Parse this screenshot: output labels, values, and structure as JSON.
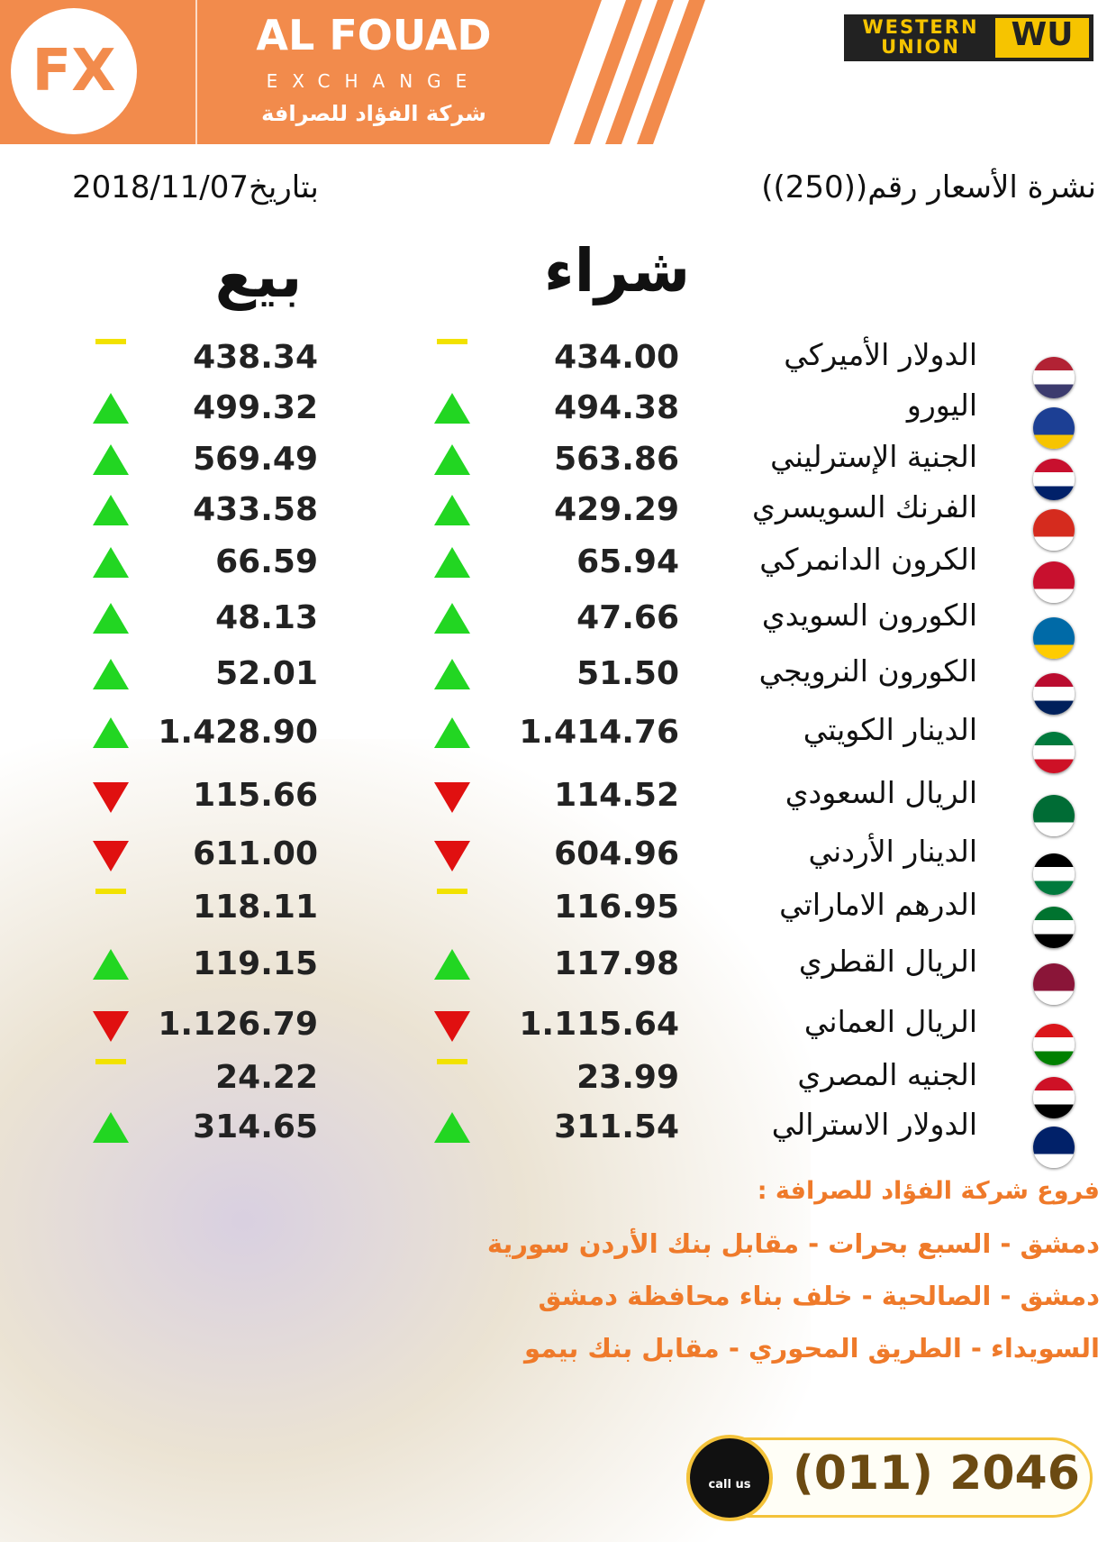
{
  "header": {
    "brand": "AL FOUAD",
    "subtitle": "EXCHANGE",
    "arabic_name": "شركة الفؤاد للصرافة",
    "partner_top": "WESTERN",
    "partner_bottom": "UNION",
    "partner_logo": "WU"
  },
  "bulletin": {
    "title": "نشرة الأسعار رقم((250))",
    "date": "بتاريخ2018/11/07"
  },
  "table": {
    "buy_header": "شراء",
    "sell_header": "بيع",
    "rows": [
      {
        "name": "الدولار الأميركي",
        "buy": "434.00",
        "buy_trend": "flat",
        "sell": "438.34",
        "sell_trend": "flat"
      },
      {
        "name": "اليورو",
        "buy": "494.38",
        "buy_trend": "up",
        "sell": "499.32",
        "sell_trend": "up"
      },
      {
        "name": "الجنية الإسترليني",
        "buy": "563.86",
        "buy_trend": "up",
        "sell": "569.49",
        "sell_trend": "up"
      },
      {
        "name": "الفرنك السويسري",
        "buy": "429.29",
        "buy_trend": "up",
        "sell": "433.58",
        "sell_trend": "up"
      },
      {
        "name": "الكرون الدانمركي",
        "buy": "65.94",
        "buy_trend": "up",
        "sell": "66.59",
        "sell_trend": "up"
      },
      {
        "name": "الكورون السويدي",
        "buy": "47.66",
        "buy_trend": "up",
        "sell": "48.13",
        "sell_trend": "up"
      },
      {
        "name": "الكورون النرويجي",
        "buy": "51.50",
        "buy_trend": "up",
        "sell": "52.01",
        "sell_trend": "up"
      },
      {
        "name": "الدينار الكويتي",
        "buy": "1.414.76",
        "buy_trend": "up",
        "sell": "1.428.90",
        "sell_trend": "up"
      },
      {
        "name": "الريال السعودي",
        "buy": "114.52",
        "buy_trend": "down",
        "sell": "115.66",
        "sell_trend": "down"
      },
      {
        "name": "الدينار الأردني",
        "buy": "604.96",
        "buy_trend": "down",
        "sell": "611.00",
        "sell_trend": "down"
      },
      {
        "name": "الدرهم الاماراتي",
        "buy": "116.95",
        "buy_trend": "flat",
        "sell": "118.11",
        "sell_trend": "flat"
      },
      {
        "name": "الريال القطري",
        "buy": "117.98",
        "buy_trend": "up",
        "sell": "119.15",
        "sell_trend": "up"
      },
      {
        "name": "الريال العماني",
        "buy": "1.115.64",
        "buy_trend": "down",
        "sell": "1.126.79",
        "sell_trend": "down"
      },
      {
        "name": "الجنيه المصري",
        "buy": "23.99",
        "buy_trend": "flat",
        "sell": "24.22",
        "sell_trend": "flat"
      },
      {
        "name": "الدولار الاسترالي",
        "buy": "311.54",
        "buy_trend": "up",
        "sell": "314.65",
        "sell_trend": "up"
      }
    ]
  },
  "branches": {
    "title": "فروع شركة الفؤاد للصرافة :",
    "lines": [
      "دمشق - السبع بحرات - مقابل بنك الأردن سورية",
      "دمشق - الصالحية - خلف بناء محافظة دمشق",
      "السويداء - الطريق المحوري - مقابل بنك بيمو"
    ]
  },
  "contact": {
    "call_label": "call us",
    "phone": "(011) 2046"
  }
}
